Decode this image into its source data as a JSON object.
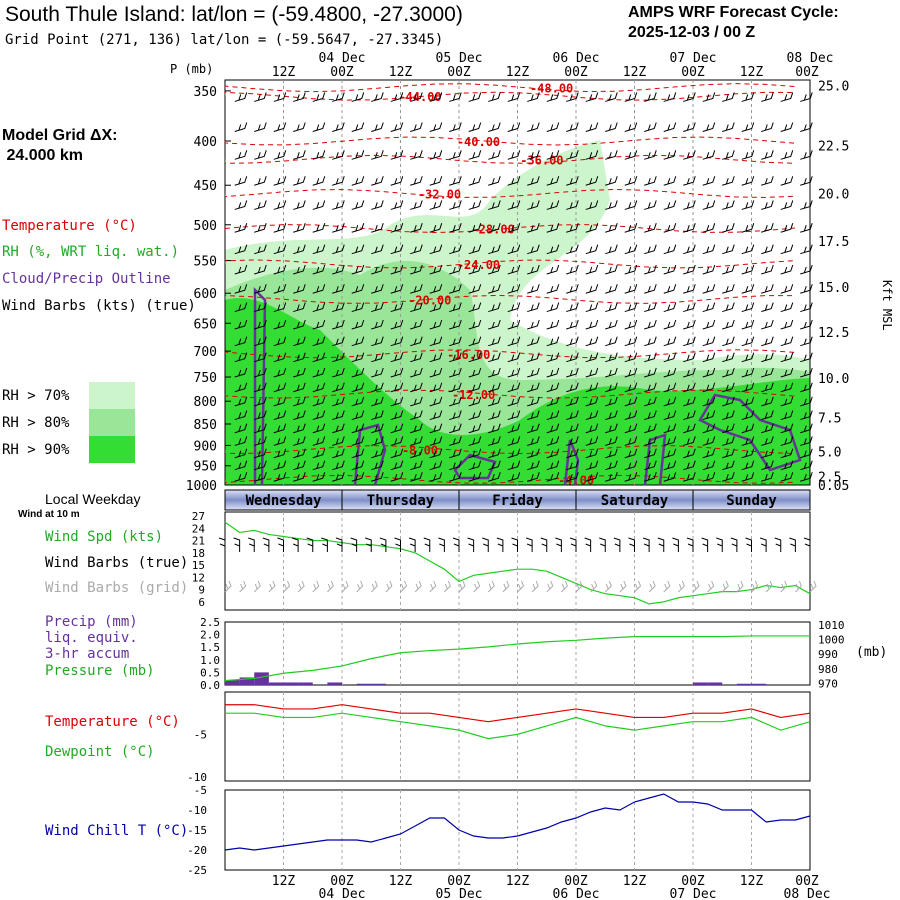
{
  "header": {
    "title": "South Thule Island:  lat/lon = (-59.4800, -27.3000)",
    "grid_point": "Grid Point (271, 136) lat/lon = (-59.5647, -27.3345)",
    "forecast_label": "AMPS WRF Forecast Cycle:",
    "forecast_cycle": "2025-12-03 / 00  Z"
  },
  "legend": {
    "model_grid_label": "Model Grid ΔX:",
    "model_grid_value": " 24.000 km",
    "temperature": "Temperature (°C)",
    "rh": "RH (%, WRT liq. wat.)",
    "cloud": "Cloud/Precip Outline",
    "wind_barbs": "Wind Barbs (kts) (true)",
    "rh70": "RH > 70%",
    "rh80": "RH > 80%",
    "rh90": "RH > 90%",
    "local_weekday": "Local Weekday",
    "wind_10m": "Wind at 10 m",
    "wind_spd": "Wind Spd (kts)",
    "barbs_true": "Wind Barbs (true)",
    "barbs_grid": "Wind Barbs (grid)",
    "precip": "Precip (mm)",
    "liq": "liq. equiv.",
    "accum": "3-hr accum",
    "pressure": "Pressure (mb)",
    "t2": "Temperature (°C)",
    "dewpoint": "Dewpoint (°C)",
    "windchill": "Wind Chill T (°C)"
  },
  "colors": {
    "rh70": "#ccf5cc",
    "rh80": "#99e699",
    "rh90": "#33dd33",
    "temp": "#dd0000",
    "dew": "#22cc22",
    "cloud": "#663399",
    "chill": "#0000aa",
    "grid_barb": "#aaaaaa",
    "precip": "#663399"
  },
  "chart_data": {
    "type": "line",
    "time_axis": {
      "hours": [
        0,
        12,
        24,
        36,
        48,
        60,
        72,
        84,
        96,
        108,
        120
      ],
      "top_labels": [
        "",
        "12Z",
        "00Z",
        "12Z",
        "00Z",
        "12Z",
        "00Z",
        "12Z",
        "00Z",
        "12Z",
        "00Z"
      ],
      "date_labels": [
        {
          "hour": 24,
          "text": "04 Dec"
        },
        {
          "hour": 48,
          "text": "05 Dec"
        },
        {
          "hour": 72,
          "text": "06 Dec"
        },
        {
          "hour": 96,
          "text": "07 Dec"
        },
        {
          "hour": 120,
          "text": "08 Dec"
        }
      ],
      "weekdays": [
        {
          "start": 0,
          "end": 24,
          "name": "Wednesday"
        },
        {
          "start": 24,
          "end": 48,
          "name": "Thursday"
        },
        {
          "start": 48,
          "end": 72,
          "name": "Friday"
        },
        {
          "start": 72,
          "end": 96,
          "name": "Saturday"
        },
        {
          "start": 96,
          "end": 120,
          "name": "Sunday"
        }
      ]
    },
    "profile": {
      "ylabel": "P (mb)",
      "right_label": "Kft MSL",
      "pressure_ticks": [
        350,
        400,
        450,
        500,
        550,
        600,
        650,
        700,
        750,
        800,
        850,
        900,
        950,
        1000
      ],
      "kft_ticks": [
        "25.0",
        "22.5",
        "20.0",
        "17.5",
        "15.0",
        "12.5",
        "10.0",
        "7.5",
        "5.0",
        "2.5",
        "0.05"
      ],
      "isotherm_labels": [
        {
          "text": "-44.00",
          "hour": 40,
          "p": 355
        },
        {
          "text": "-48.00",
          "hour": 67,
          "p": 347
        },
        {
          "text": "-40.00",
          "hour": 52,
          "p": 400
        },
        {
          "text": "-36.00",
          "hour": 65,
          "p": 420
        },
        {
          "text": "-32.00",
          "hour": 44,
          "p": 460
        },
        {
          "text": "-28.00",
          "hour": 55,
          "p": 505
        },
        {
          "text": "-24.00",
          "hour": 52,
          "p": 555
        },
        {
          "text": "-20.00",
          "hour": 42,
          "p": 610
        },
        {
          "text": "-16.00",
          "hour": 50,
          "p": 705
        },
        {
          "text": "-12.00",
          "hour": 51,
          "p": 785
        },
        {
          "text": "-8.00",
          "hour": 40,
          "p": 910
        },
        {
          "text": "-4.00",
          "hour": 72,
          "p": 985
        }
      ]
    },
    "wind": {
      "ylabel": "kts",
      "yticks": [
        6,
        9,
        12,
        15,
        18,
        21,
        24,
        27
      ],
      "ylim": [
        4,
        28
      ],
      "x": [
        0,
        3,
        6,
        9,
        12,
        15,
        18,
        21,
        24,
        27,
        30,
        33,
        36,
        39,
        42,
        45,
        48,
        51,
        54,
        57,
        60,
        63,
        66,
        69,
        72,
        75,
        78,
        81,
        84,
        87,
        90,
        93,
        96,
        99,
        102,
        105,
        108,
        111,
        114,
        117,
        120
      ],
      "speed": [
        25.5,
        23,
        23.5,
        22.5,
        22,
        21.5,
        21,
        21,
        20.5,
        20,
        20,
        19.5,
        19,
        18,
        16,
        14,
        11,
        12.5,
        13,
        13.5,
        14,
        14,
        13.5,
        12,
        10.5,
        9,
        8,
        7.5,
        7,
        5.5,
        6,
        7,
        7.5,
        8,
        8.5,
        8.5,
        9,
        10,
        9.5,
        10,
        8
      ]
    },
    "precip_pressure": {
      "precip_yticks": [
        "0.0",
        "0.5",
        "1.0",
        "1.5",
        "2.0",
        "2.5"
      ],
      "pressure_yticks": [
        970,
        980,
        990,
        1000,
        1010
      ],
      "pressure_unit": "(mb)",
      "precip_ylim": [
        0,
        2.5
      ],
      "pressure_ylim": [
        969,
        1012
      ],
      "precip_bars": [
        {
          "start": 0,
          "end": 3,
          "value": 0.2
        },
        {
          "start": 3,
          "end": 6,
          "value": 0.3
        },
        {
          "start": 6,
          "end": 9,
          "value": 0.5
        },
        {
          "start": 9,
          "end": 12,
          "value": 0.1
        },
        {
          "start": 12,
          "end": 15,
          "value": 0.1
        },
        {
          "start": 15,
          "end": 18,
          "value": 0.1
        },
        {
          "start": 21,
          "end": 24,
          "value": 0.1
        },
        {
          "start": 27,
          "end": 30,
          "value": 0.05
        },
        {
          "start": 30,
          "end": 33,
          "value": 0.05
        },
        {
          "start": 96,
          "end": 99,
          "value": 0.1
        },
        {
          "start": 99,
          "end": 102,
          "value": 0.1
        },
        {
          "start": 105,
          "end": 108,
          "value": 0.05
        },
        {
          "start": 108,
          "end": 111,
          "value": 0.05
        }
      ],
      "pressure_x": [
        0,
        6,
        12,
        18,
        24,
        30,
        36,
        42,
        48,
        54,
        60,
        66,
        72,
        78,
        84,
        90,
        96,
        102,
        108,
        114,
        120
      ],
      "pressure": [
        972,
        973.5,
        977,
        979,
        982,
        987,
        991,
        992.5,
        993.5,
        995,
        997,
        998.5,
        999.5,
        1001,
        1002,
        1002,
        1002,
        1002,
        1002.5,
        1002.5,
        1002.5
      ]
    },
    "temperature": {
      "ylabel": "°C",
      "yticks": [
        -5,
        -10
      ],
      "ylim": [
        -10.5,
        0
      ],
      "x": [
        0,
        6,
        12,
        18,
        24,
        30,
        36,
        42,
        48,
        54,
        60,
        66,
        72,
        78,
        84,
        90,
        96,
        102,
        108,
        114,
        120
      ],
      "temp": [
        -1.5,
        -1.5,
        -2.0,
        -2.0,
        -1.5,
        -2.0,
        -2.5,
        -2.5,
        -3.0,
        -3.5,
        -3.0,
        -2.5,
        -2.0,
        -2.5,
        -3.0,
        -3.0,
        -2.5,
        -2.5,
        -2.0,
        -3.0,
        -2.5
      ],
      "dewpoint": [
        -2.5,
        -2.5,
        -3.0,
        -3.0,
        -2.5,
        -3.0,
        -3.5,
        -4.0,
        -4.5,
        -5.5,
        -5.0,
        -4.0,
        -3.0,
        -4.0,
        -4.5,
        -4.0,
        -3.5,
        -3.5,
        -3.0,
        -4.5,
        -3.5
      ]
    },
    "windchill": {
      "ylabel": "°C",
      "yticks": [
        -5,
        -10,
        -15,
        -20,
        -25
      ],
      "ylim": [
        -25,
        -5
      ],
      "x": [
        0,
        3,
        6,
        9,
        12,
        15,
        18,
        21,
        24,
        27,
        30,
        33,
        36,
        39,
        42,
        45,
        48,
        51,
        54,
        57,
        60,
        63,
        66,
        69,
        72,
        75,
        78,
        81,
        84,
        87,
        90,
        93,
        96,
        99,
        102,
        105,
        108,
        111,
        114,
        117,
        120
      ],
      "values": [
        -20,
        -19.5,
        -20,
        -19.5,
        -19,
        -18.5,
        -18,
        -17.5,
        -17.5,
        -17.5,
        -18,
        -17,
        -16,
        -14,
        -12,
        -12,
        -15,
        -16.5,
        -17,
        -17,
        -16.5,
        -15.5,
        -14.5,
        -13,
        -12,
        -10.5,
        -9.5,
        -10,
        -8,
        -7,
        -6,
        -8,
        -8,
        -8.5,
        -10,
        -10,
        -10,
        -13,
        -12.5,
        -12.5,
        -11.5
      ]
    }
  }
}
